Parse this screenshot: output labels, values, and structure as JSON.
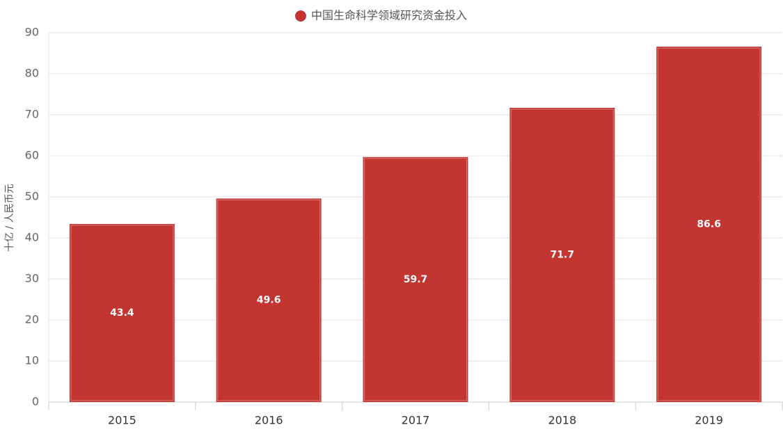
{
  "chart_data": {
    "type": "bar",
    "categories": [
      "2015",
      "2016",
      "2017",
      "2018",
      "2019"
    ],
    "series": [
      {
        "name": "中国生命科学领域研究资金投入",
        "color": "#c23531",
        "values": [
          43.4,
          49.6,
          59.7,
          71.7,
          86.6
        ]
      }
    ],
    "y_label": "十亿 / 人民币元",
    "ylim": [
      0,
      90
    ],
    "yticks": [
      0,
      10,
      20,
      30,
      40,
      50,
      60,
      70,
      80,
      90
    ],
    "grid": true,
    "legend": "top"
  }
}
